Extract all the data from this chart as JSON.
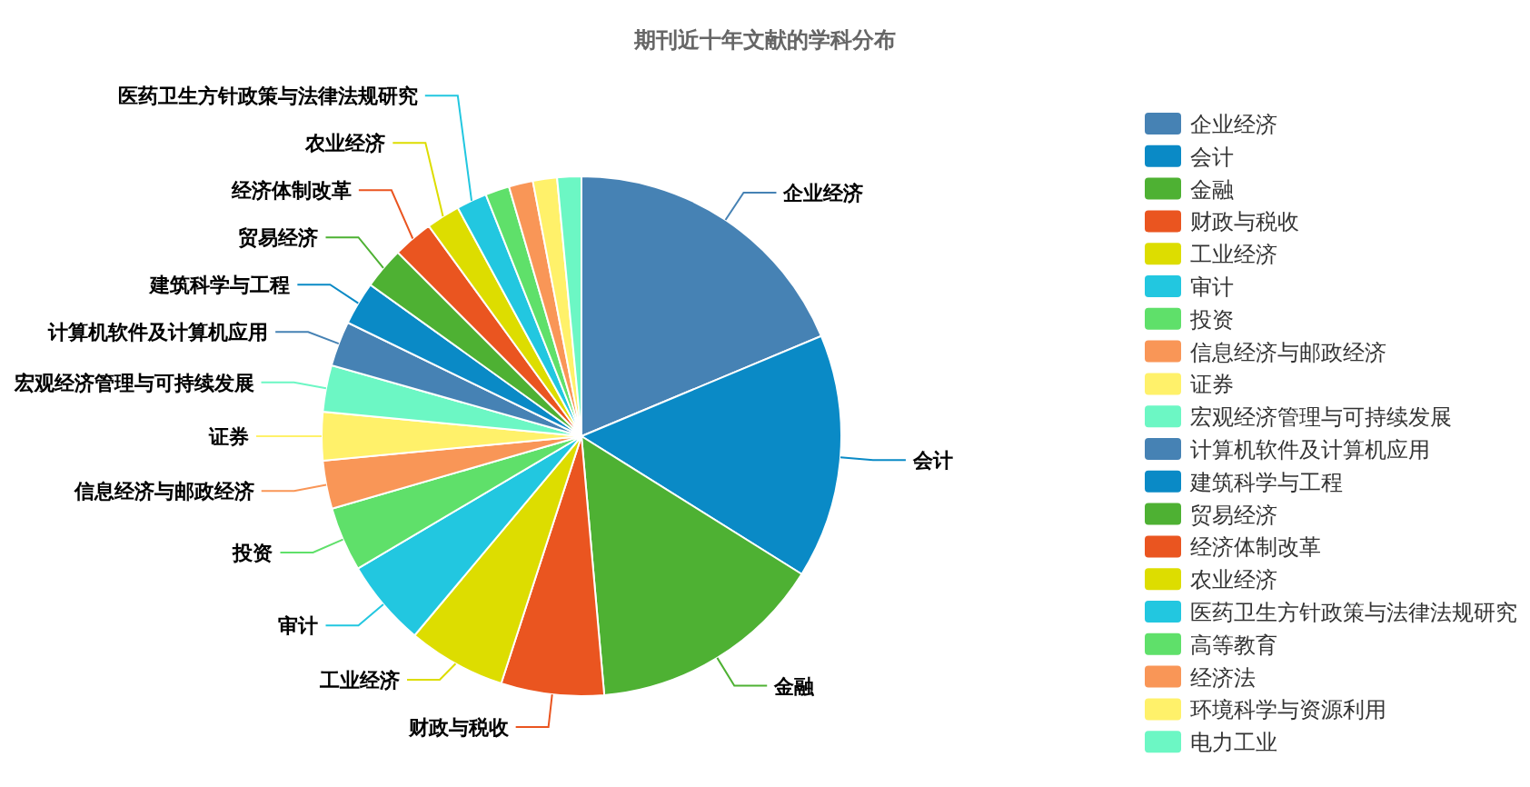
{
  "chart_data": {
    "type": "pie",
    "title": "期刊近十年文献的学科分布",
    "categories": [
      "企业经济",
      "会计",
      "金融",
      "财政与税收",
      "工业经济",
      "审计",
      "投资",
      "信息经济与邮政经济",
      "证券",
      "宏观经济管理与可持续发展",
      "计算机软件及计算机应用",
      "建筑科学与工程",
      "贸易经济",
      "经济体制改革",
      "农业经济",
      "医药卫生方针政策与法律法规研究",
      "高等教育",
      "经济法",
      "环境科学与资源利用",
      "电力工业"
    ],
    "values": [
      18.7,
      15.2,
      14.7,
      6.4,
      6.1,
      5.4,
      4.0,
      3.0,
      3.0,
      2.9,
      2.8,
      2.7,
      2.6,
      2.5,
      2.1,
      1.9,
      1.5,
      1.5,
      1.5,
      1.5
    ],
    "colors": [
      "#4682b4",
      "#0a8ac6",
      "#4eb133",
      "#ea5520",
      "#dddd00",
      "#22c7e0",
      "#5fe06a",
      "#f99657",
      "#fff16a",
      "#6cf7c4",
      "#4682b4",
      "#0a8ac6",
      "#4eb133",
      "#ea5520",
      "#dddd00",
      "#22c7e0",
      "#5fe06a",
      "#f99657",
      "#fff16a",
      "#6cf7c4"
    ],
    "legend": "right"
  }
}
